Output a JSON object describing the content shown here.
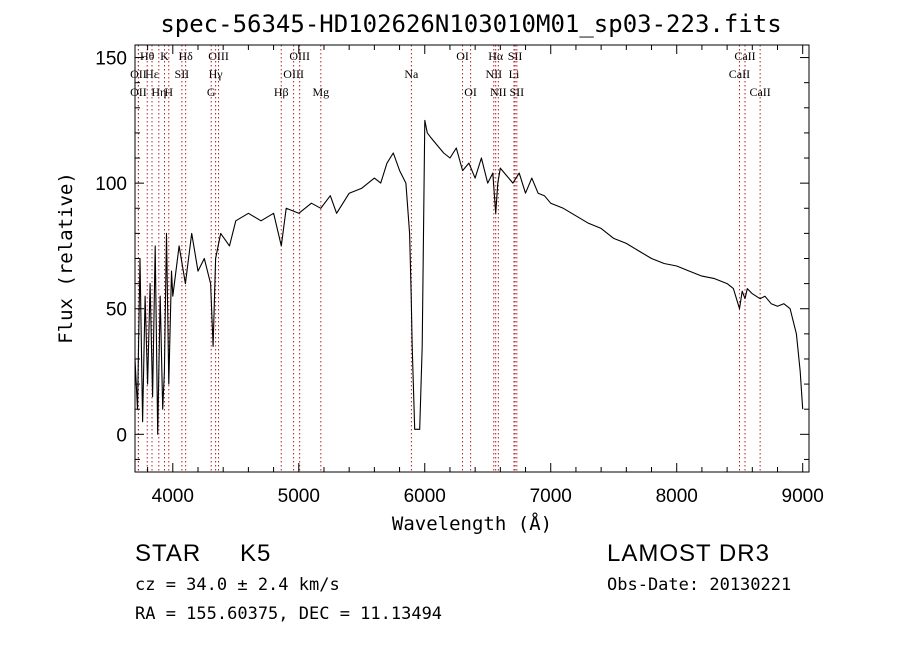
{
  "chart_data": {
    "type": "line",
    "title": "spec-56345-HD102626N103010M01_sp03-223.fits",
    "xlabel": "Wavelength (Å)",
    "ylabel": "Flux (relative)",
    "xlim": [
      3700,
      9050
    ],
    "ylim": [
      -15,
      155
    ],
    "xticks": [
      4000,
      5000,
      6000,
      7000,
      8000,
      9000
    ],
    "yticks": [
      0,
      50,
      100,
      150
    ],
    "series": [
      {
        "name": "flux",
        "x": [
          3700,
          3720,
          3740,
          3760,
          3780,
          3800,
          3820,
          3840,
          3860,
          3880,
          3900,
          3920,
          3933,
          3950,
          3968,
          3990,
          4000,
          4050,
          4100,
          4150,
          4200,
          4250,
          4300,
          4320,
          4340,
          4380,
          4450,
          4500,
          4600,
          4700,
          4800,
          4861,
          4900,
          5000,
          5100,
          5175,
          5250,
          5300,
          5400,
          5500,
          5600,
          5650,
          5700,
          5750,
          5800,
          5850,
          5880,
          5892,
          5900,
          5920,
          5940,
          5960,
          5980,
          6000,
          6020,
          6050,
          6100,
          6150,
          6200,
          6250,
          6300,
          6350,
          6400,
          6450,
          6500,
          6540,
          6563,
          6580,
          6600,
          6650,
          6700,
          6750,
          6800,
          6850,
          6900,
          6950,
          7000,
          7100,
          7200,
          7300,
          7400,
          7500,
          7600,
          7700,
          7800,
          7900,
          8000,
          8100,
          8200,
          8300,
          8400,
          8450,
          8498,
          8520,
          8542,
          8560,
          8600,
          8662,
          8700,
          8750,
          8800,
          8850,
          8900,
          8950,
          8980,
          9000
        ],
        "y": [
          30,
          10,
          70,
          5,
          55,
          20,
          60,
          15,
          75,
          0,
          55,
          10,
          25,
          80,
          20,
          65,
          55,
          75,
          60,
          80,
          65,
          70,
          60,
          35,
          70,
          80,
          75,
          85,
          88,
          85,
          88,
          75,
          90,
          88,
          92,
          90,
          95,
          88,
          96,
          98,
          102,
          100,
          108,
          112,
          105,
          100,
          80,
          55,
          35,
          2,
          2,
          2,
          35,
          125,
          120,
          118,
          115,
          112,
          110,
          114,
          105,
          108,
          102,
          110,
          100,
          104,
          88,
          100,
          106,
          103,
          100,
          104,
          96,
          102,
          96,
          95,
          92,
          90,
          87,
          84,
          82,
          78,
          76,
          73,
          70,
          68,
          67,
          65,
          63,
          62,
          60,
          58,
          50,
          57,
          54,
          58,
          56,
          54,
          55,
          52,
          51,
          52,
          50,
          40,
          25,
          10
        ]
      }
    ],
    "line_marks": [
      {
        "label": "OII",
        "x": 3727,
        "row": 1
      },
      {
        "label": "Hθ",
        "x": 3797,
        "row": 0
      },
      {
        "label": "OII",
        "x": 3727,
        "row": 2
      },
      {
        "label": "Hε",
        "x": 3835,
        "row": 1
      },
      {
        "label": "Hη",
        "x": 3889,
        "row": 2
      },
      {
        "label": "K",
        "x": 3934,
        "row": 0
      },
      {
        "label": "H",
        "x": 3968,
        "row": 2
      },
      {
        "label": "Hδ",
        "x": 4102,
        "row": 0
      },
      {
        "label": "SII",
        "x": 4072,
        "row": 1
      },
      {
        "label": "OIII",
        "x": 4363,
        "row": 0
      },
      {
        "label": "Hγ",
        "x": 4340,
        "row": 1
      },
      {
        "label": "G",
        "x": 4305,
        "row": 2
      },
      {
        "label": "Hβ",
        "x": 4861,
        "row": 2
      },
      {
        "label": "OIII",
        "x": 5007,
        "row": 0
      },
      {
        "label": "OIII",
        "x": 4959,
        "row": 1
      },
      {
        "label": "Mg",
        "x": 5175,
        "row": 2
      },
      {
        "label": "Na",
        "x": 5894,
        "row": 1
      },
      {
        "label": "OI",
        "x": 6300,
        "row": 0
      },
      {
        "label": "OI",
        "x": 6364,
        "row": 2
      },
      {
        "label": "Hα",
        "x": 6563,
        "row": 0
      },
      {
        "label": "SII",
        "x": 6717,
        "row": 0
      },
      {
        "label": "NII",
        "x": 6548,
        "row": 1
      },
      {
        "label": "Li",
        "x": 6708,
        "row": 1
      },
      {
        "label": "NII",
        "x": 6584,
        "row": 2
      },
      {
        "label": "SII",
        "x": 6731,
        "row": 2
      },
      {
        "label": "CaII",
        "x": 8542,
        "row": 0
      },
      {
        "label": "CaII",
        "x": 8498,
        "row": 1
      },
      {
        "label": "CaII",
        "x": 8662,
        "row": 2
      }
    ]
  },
  "info": {
    "class": "STAR",
    "subclass": "K5",
    "survey": "LAMOST DR3",
    "redshift": "cz = 34.0 ± 2.4 km/s",
    "obs_date": "Obs-Date: 20130221",
    "coords": "RA = 155.60375, DEC =  11.13494"
  }
}
